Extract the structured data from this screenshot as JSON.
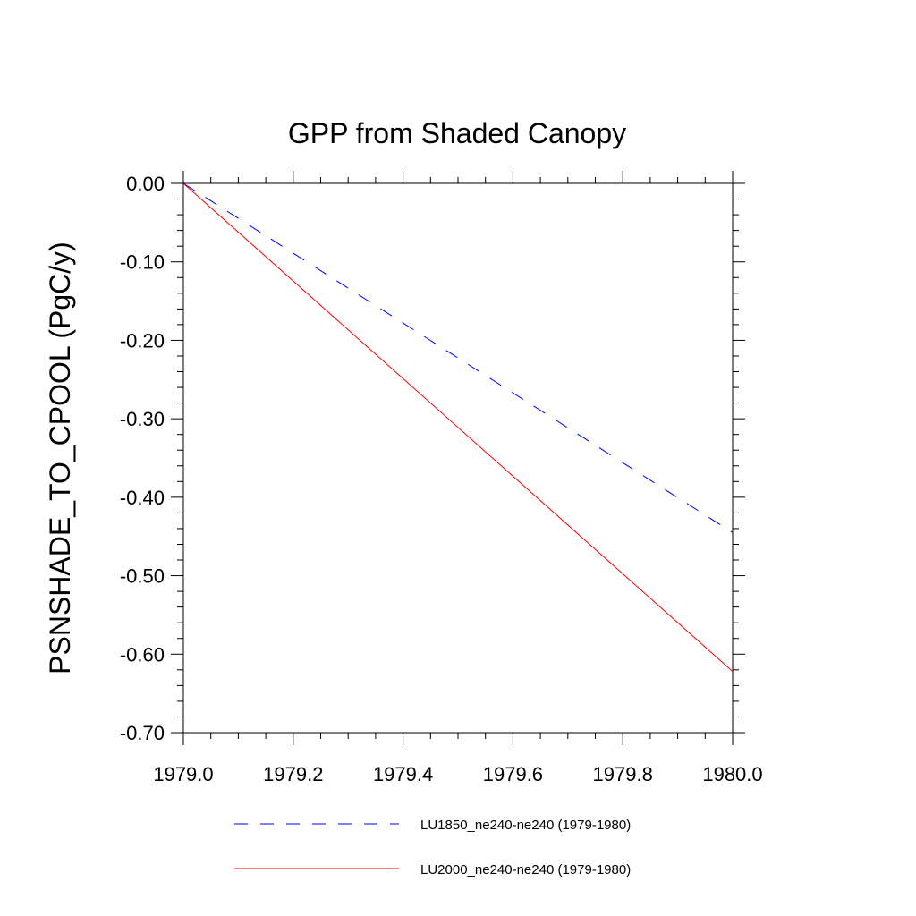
{
  "chart_data": {
    "type": "line",
    "title": "GPP from Shaded Canopy",
    "xlabel": "",
    "ylabel": "PSNSHADE_TO_CPOOL  (PgC/y)",
    "xlim": [
      1979.0,
      1980.0
    ],
    "ylim": [
      -0.7,
      0.0
    ],
    "x_ticks": [
      1979.0,
      1979.2,
      1979.4,
      1979.6,
      1979.8,
      1980.0
    ],
    "x_tick_labels": [
      "1979.0",
      "1979.2",
      "1979.4",
      "1979.6",
      "1979.8",
      "1980.0"
    ],
    "y_ticks": [
      0.0,
      -0.1,
      -0.2,
      -0.3,
      -0.4,
      -0.5,
      -0.6,
      -0.7
    ],
    "y_tick_labels": [
      "0.00",
      "-0.10",
      "-0.20",
      "-0.30",
      "-0.40",
      "-0.50",
      "-0.60",
      "-0.70"
    ],
    "grid": false,
    "legend_position": "bottom",
    "series": [
      {
        "name": "LU1850_ne240-ne240 (1979-1980)",
        "color": "#0000ff",
        "dash": "dashed",
        "x": [
          1979.0,
          1980.0
        ],
        "y": [
          0.0,
          -0.445
        ]
      },
      {
        "name": "LU2000_ne240-ne240 (1979-1980)",
        "color": "#ff0000",
        "dash": "solid",
        "x": [
          1979.0,
          1980.0
        ],
        "y": [
          0.0,
          -0.622
        ]
      }
    ]
  }
}
